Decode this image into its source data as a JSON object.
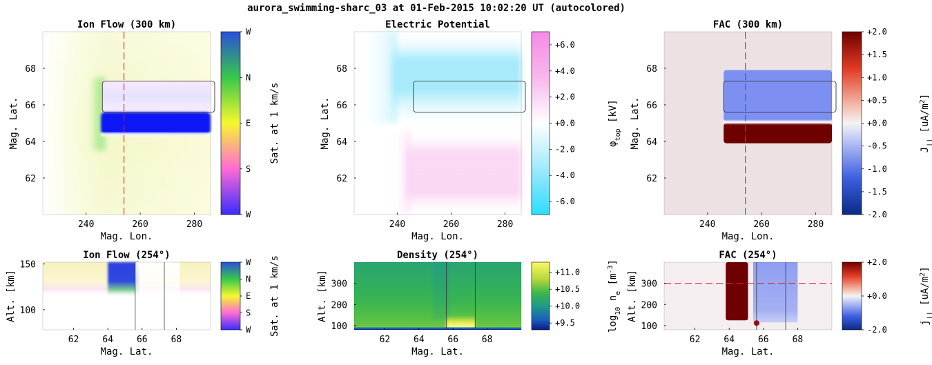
{
  "figure": {
    "title": "aurora_swimming-sharc_03 at 01-Feb-2015 10:02:20 UT (autocolored)"
  },
  "colors": {
    "slice_line": "#d62728",
    "arc_outline": "#333333",
    "background": "#ffffff"
  },
  "chart_data": [
    {
      "id": "ion_flow_300",
      "type": "heatmap",
      "title": "Ion Flow (300 km)",
      "xlabel": "Mag. Lon.",
      "ylabel": "Mag. Lat.",
      "xticks": [
        240,
        260,
        280
      ],
      "yticks": [
        62,
        64,
        66,
        68
      ],
      "xlim": [
        224,
        286
      ],
      "ylim": [
        60,
        70
      ],
      "colorbar": {
        "label": "Sat. at 1 km/s",
        "ticks": [
          "W",
          "N",
          "E",
          "S",
          "W"
        ],
        "colormap": "hue"
      },
      "slice": {
        "axis": "x",
        "value": 254
      },
      "arc_box": {
        "x": [
          246,
          286
        ],
        "y": [
          65.6,
          67.3
        ]
      },
      "fields": [
        {
          "y_range": [
            64.4,
            65.6
          ],
          "x_start": 246,
          "direction": "W",
          "saturation": 1.0
        },
        {
          "y_range": [
            65.6,
            67.3
          ],
          "x_start": 246,
          "direction": "W",
          "saturation": 0.2
        },
        {
          "region": "background",
          "direction": "E",
          "saturation": 0.2
        }
      ]
    },
    {
      "id": "potential",
      "type": "heatmap",
      "title": "Electric Potential",
      "xlabel": "Mag. Lon.",
      "ylabel": "Mag. Lat.",
      "xticks": [
        240,
        260,
        280
      ],
      "yticks": [
        62,
        64,
        66,
        68
      ],
      "xlim": [
        224,
        286
      ],
      "ylim": [
        60,
        70
      ],
      "colorbar": {
        "label": "phi_top [kV]",
        "label_main": "φ",
        "label_sub": "top",
        "label_unit": " [kV]",
        "ticks": [
          "+6.0",
          "+4.0",
          "+2.0",
          "+0.0",
          "-2.0",
          "-4.0",
          "-6.0"
        ],
        "range": [
          -7,
          7
        ],
        "colormap": "cyan-white-pink"
      },
      "arc_box": {
        "x": [
          246,
          286
        ],
        "y": [
          65.6,
          67.3
        ]
      },
      "fields": [
        {
          "region": "north",
          "y_range": [
            65.0,
            70
          ],
          "value": -3.5
        },
        {
          "region": "south",
          "y_range": [
            60,
            65.0
          ],
          "value": 2.5
        }
      ]
    },
    {
      "id": "fac_300",
      "type": "heatmap",
      "title": "FAC (300 km)",
      "xlabel": "Mag. Lon.",
      "ylabel": "Mag. Lat.",
      "xticks": [
        240,
        260,
        280
      ],
      "yticks": [
        62,
        64,
        66,
        68
      ],
      "xlim": [
        224,
        286
      ],
      "ylim": [
        60,
        70
      ],
      "colorbar": {
        "label": "J|| [uA/m^2]",
        "label_main": "J",
        "label_sub": "||",
        "label_unit": " [uA/m",
        "label_sup": "2",
        "label_tail": "]",
        "ticks": [
          "+2.0",
          "+1.5",
          "+1.0",
          "+0.5",
          "+0.0",
          "-0.5",
          "-1.0",
          "-1.5",
          "-2.0"
        ],
        "range": [
          -2,
          2
        ],
        "colormap": "blue-white-red"
      },
      "slice": {
        "axis": "x",
        "value": 254
      },
      "arc_box": {
        "x": [
          246,
          286
        ],
        "y": [
          65.6,
          67.3
        ]
      },
      "fields": [
        {
          "y_range": [
            65.1,
            67.9
          ],
          "x_start": 246,
          "value": -0.9
        },
        {
          "y_range": [
            63.9,
            65.0
          ],
          "x_start": 246,
          "value": 2.0
        },
        {
          "region": "background",
          "value": 0.05
        }
      ]
    },
    {
      "id": "ion_flow_254",
      "type": "heatmap",
      "title": "Ion Flow (254°)",
      "xlabel": "Mag. Lat.",
      "ylabel": "Alt. [km]",
      "xticks": [
        62,
        64,
        66,
        68
      ],
      "yticks": [
        100,
        150
      ],
      "xlim": [
        60.2,
        70
      ],
      "ylim": [
        78,
        152
      ],
      "colorbar": {
        "label": "Sat. at 1 km/s",
        "ticks": [
          "W",
          "N",
          "E",
          "S",
          "W"
        ],
        "colormap": "hue"
      },
      "vlines": [
        65.6,
        67.3
      ],
      "fields": [
        {
          "x_range": [
            64.2,
            65.6
          ],
          "alt_range": [
            118,
            152
          ],
          "direction": "W",
          "saturation": 1.0
        },
        {
          "region": "background",
          "alt_range": [
            118,
            152
          ],
          "direction": "E",
          "saturation": 0.25
        }
      ]
    },
    {
      "id": "density_254",
      "type": "heatmap",
      "title": "Density (254°)",
      "xlabel": "Mag. Lat.",
      "ylabel": "Alt. [km]",
      "xticks": [
        62,
        64,
        66,
        68
      ],
      "yticks": [
        100,
        200,
        300
      ],
      "xlim": [
        60.2,
        70
      ],
      "ylim": [
        80,
        400
      ],
      "colorbar": {
        "label": "log10 ne [m^-3]",
        "label_pre": "log",
        "label_pre_sub": "10",
        "label_main": " n",
        "label_sub": "e",
        "label_unit": " [m",
        "label_sup": "-3",
        "label_tail": "]",
        "ticks": [
          "+11.0",
          "+10.5",
          "+10.0",
          "+9.5"
        ],
        "tick_values": [
          11.0,
          10.5,
          10.0,
          9.5
        ],
        "range": [
          9.3,
          11.3
        ],
        "colormap": "viridis-like"
      },
      "vlines": [
        65.6,
        67.3
      ],
      "fields": [
        {
          "region": "background",
          "value": 10.3
        },
        {
          "x_range": [
            65.6,
            67.3
          ],
          "alt_range": [
            85,
            140
          ],
          "value": 11.3
        },
        {
          "alt_range": [
            80,
            90
          ],
          "value": 9.3
        }
      ]
    },
    {
      "id": "fac_254",
      "type": "heatmap",
      "title": "FAC (254°)",
      "xlabel": "Mag. Lat.",
      "ylabel": "Alt. [km]",
      "xticks": [
        62,
        64,
        66,
        68
      ],
      "yticks": [
        100,
        200,
        300
      ],
      "xlim": [
        60.2,
        70
      ],
      "ylim": [
        80,
        400
      ],
      "colorbar": {
        "label": "j|| [uA/m^2]",
        "label_main": "j",
        "label_sub": "||",
        "label_unit": " [uA/m",
        "label_sup": "2",
        "label_tail": "]",
        "ticks": [
          "+2.0",
          "+0.0",
          "-2.0"
        ],
        "tick_values": [
          2.0,
          0.0,
          -2.0
        ],
        "range": [
          -2,
          2
        ],
        "colormap": "blue-white-red"
      },
      "vlines": [
        65.6,
        67.3
      ],
      "hline": 300,
      "fields": [
        {
          "x_range": [
            63.8,
            65.1
          ],
          "value": 2.0
        },
        {
          "x_range": [
            65.4,
            68.0
          ],
          "value": -0.9
        },
        {
          "region": "background",
          "value": 0.05
        }
      ]
    }
  ]
}
